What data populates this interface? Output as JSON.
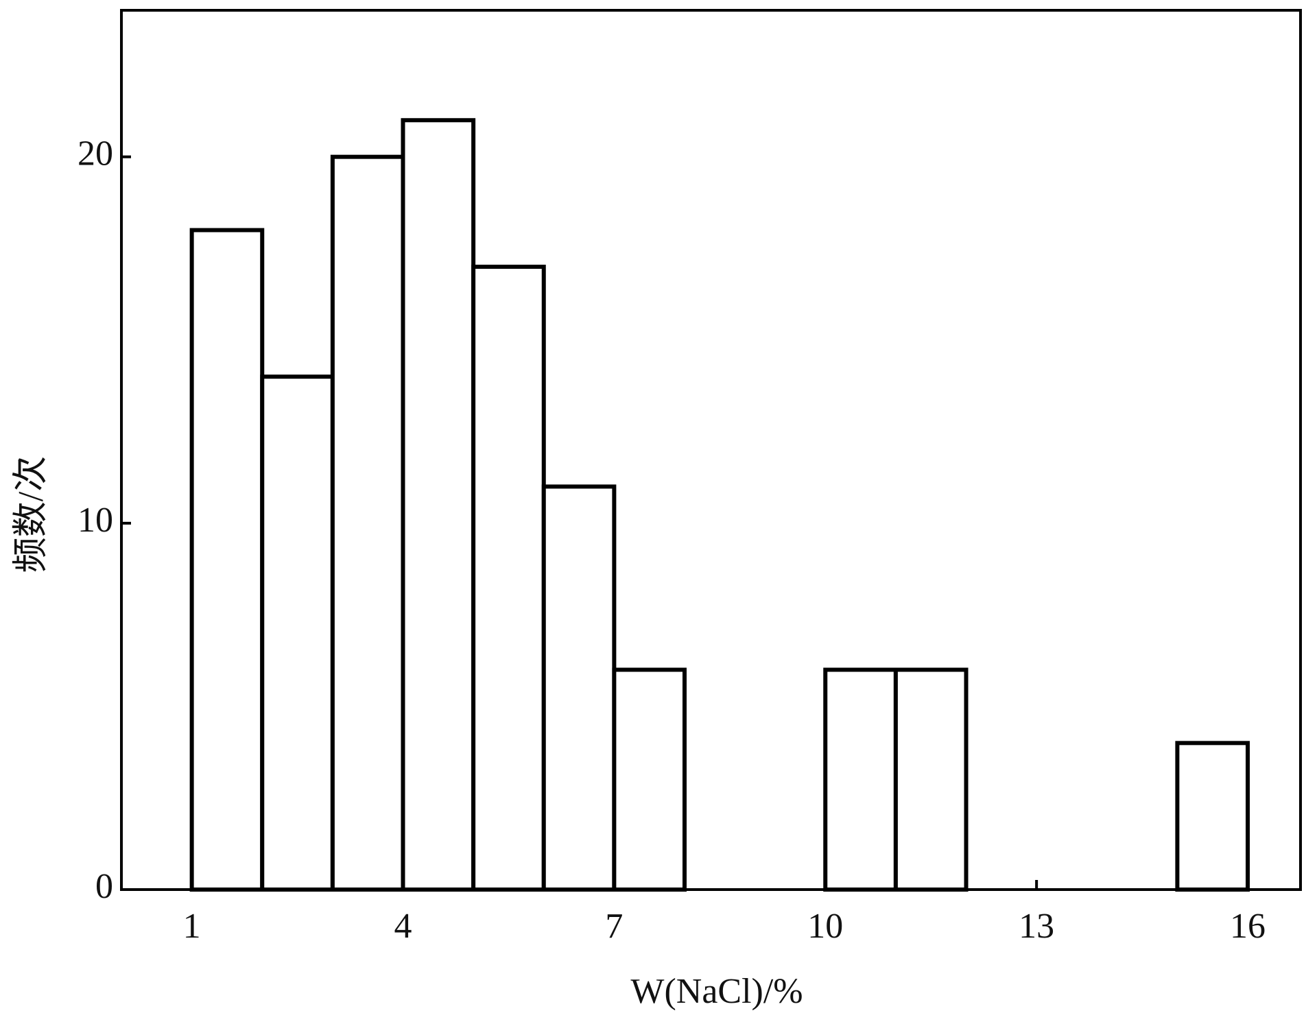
{
  "chart_data": {
    "type": "histogram",
    "xlabel": "W(NaCl)/%",
    "ylabel": "频数/次",
    "bins": [
      1,
      2,
      3,
      4,
      5,
      6,
      7,
      8,
      9,
      10,
      11,
      12,
      13,
      14,
      15,
      16
    ],
    "counts": [
      18,
      14,
      20,
      21,
      17,
      11,
      6,
      0,
      0,
      6,
      6,
      0,
      0,
      0,
      4
    ],
    "color": "#ffffff",
    "edgecolor": "#000000",
    "xlim": [
      0,
      16.75
    ],
    "ylim": [
      0,
      24
    ],
    "xticks": [
      1,
      4,
      7,
      10,
      13,
      16
    ],
    "yticks": [
      0,
      10,
      20
    ],
    "grid": false
  }
}
